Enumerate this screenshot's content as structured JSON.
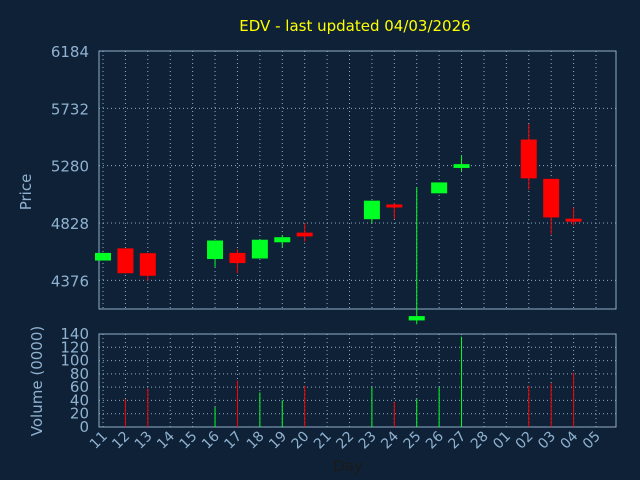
{
  "chart_data": {
    "type": "candlestick",
    "title": "EDV - last updated 04/03/2026",
    "xlabel": "Day",
    "ylabel": "Price",
    "volume_label": "Volume (0000)",
    "price_ticks": [
      4376,
      4828,
      5280,
      5732,
      6184
    ],
    "ylim": [
      4150,
      6184
    ],
    "volume_ticks": [
      0,
      20,
      40,
      60,
      80,
      100,
      120,
      140
    ],
    "volume_lim": [
      0,
      140
    ],
    "x_ticks": [
      "11",
      "12",
      "13",
      "14",
      "15",
      "16",
      "17",
      "18",
      "19",
      "20",
      "21",
      "22",
      "23",
      "24",
      "25",
      "26",
      "27",
      "28",
      "01",
      "02",
      "03",
      "04",
      "05"
    ],
    "grid": true,
    "colors": {
      "up": "#00ff22",
      "down": "#ff0000",
      "text": "#8fb2d0",
      "title": "#ffff00",
      "grid": "#8faecb",
      "background": "#0f2136"
    },
    "candles": [
      {
        "day": "11",
        "open": 4532,
        "close": 4592,
        "high": 4592,
        "low": 4532,
        "volume": 0
      },
      {
        "day": "12",
        "open": 4628,
        "close": 4432,
        "high": 4628,
        "low": 4432,
        "volume": 42
      },
      {
        "day": "13",
        "open": 4590,
        "close": 4412,
        "high": 4592,
        "low": 4372,
        "volume": 58
      },
      {
        "day": "16",
        "open": 4544,
        "close": 4690,
        "high": 4690,
        "low": 4482,
        "volume": 30
      },
      {
        "day": "17",
        "open": 4592,
        "close": 4512,
        "high": 4620,
        "low": 4432,
        "volume": 70
      },
      {
        "day": "18",
        "open": 4548,
        "close": 4696,
        "high": 4696,
        "low": 4548,
        "volume": 52
      },
      {
        "day": "19",
        "open": 4676,
        "close": 4716,
        "high": 4732,
        "low": 4636,
        "volume": 40
      },
      {
        "day": "20",
        "open": 4752,
        "close": 4722,
        "high": 4826,
        "low": 4680,
        "volume": 62
      },
      {
        "day": "23",
        "open": 4858,
        "close": 5004,
        "high": 5004,
        "low": 4826,
        "volume": 60
      },
      {
        "day": "24",
        "open": 4974,
        "close": 4956,
        "high": 4984,
        "low": 4860,
        "volume": 38
      },
      {
        "day": "25",
        "open": 4060,
        "close": 4094,
        "high": 5110,
        "low": 4030,
        "volume": 42
      },
      {
        "day": "26",
        "open": 5062,
        "close": 5148,
        "high": 5148,
        "low": 5062,
        "volume": 60
      },
      {
        "day": "27",
        "open": 5262,
        "close": 5292,
        "high": 5360,
        "low": 5236,
        "volume": 136
      },
      {
        "day": "02",
        "open": 5486,
        "close": 5180,
        "high": 5608,
        "low": 5090,
        "volume": 62
      },
      {
        "day": "03",
        "open": 5176,
        "close": 4872,
        "high": 5176,
        "low": 4740,
        "volume": 66
      },
      {
        "day": "04",
        "open": 4862,
        "close": 4852,
        "high": 4950,
        "low": 4810,
        "volume": 82
      }
    ]
  }
}
